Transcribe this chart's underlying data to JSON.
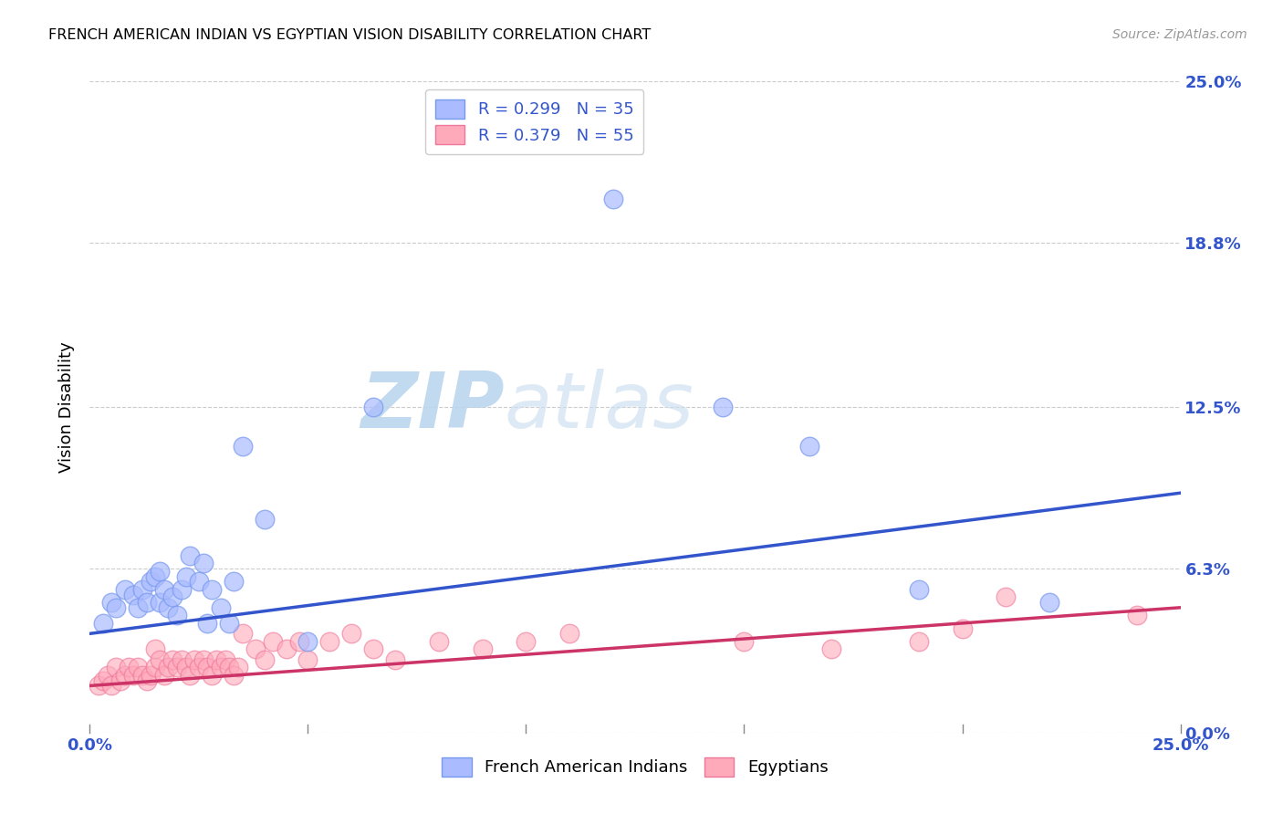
{
  "title": "FRENCH AMERICAN INDIAN VS EGYPTIAN VISION DISABILITY CORRELATION CHART",
  "source": "Source: ZipAtlas.com",
  "ylabel": "Vision Disability",
  "xlim": [
    0.0,
    0.25
  ],
  "ylim": [
    0.0,
    0.25
  ],
  "ytick_labels": [
    "0.0%",
    "6.3%",
    "12.5%",
    "18.8%",
    "25.0%"
  ],
  "ytick_values": [
    0.0,
    0.063,
    0.125,
    0.188,
    0.25
  ],
  "xtick_positions": [
    0.0,
    0.05,
    0.1,
    0.15,
    0.2,
    0.25
  ],
  "grid_color": "#cccccc",
  "background_color": "#ffffff",
  "blue_marker_color": "#aabbff",
  "blue_marker_edge": "#7799ee",
  "pink_marker_color": "#ffaabb",
  "pink_marker_edge": "#ee7799",
  "blue_line_color": "#3355cc",
  "pink_line_color": "#cc3366",
  "axis_label_color": "#3355cc",
  "legend_black": "#222222",
  "legend_blue": "#3355cc",
  "watermark_color": "#d6e8f5",
  "blue_scatter_x": [
    0.003,
    0.005,
    0.006,
    0.008,
    0.01,
    0.011,
    0.012,
    0.013,
    0.014,
    0.015,
    0.016,
    0.016,
    0.017,
    0.018,
    0.019,
    0.02,
    0.021,
    0.022,
    0.023,
    0.025,
    0.026,
    0.027,
    0.028,
    0.03,
    0.032,
    0.033,
    0.035,
    0.04,
    0.05,
    0.065,
    0.12,
    0.145,
    0.165,
    0.19,
    0.22
  ],
  "blue_scatter_y": [
    0.042,
    0.05,
    0.048,
    0.055,
    0.053,
    0.048,
    0.055,
    0.05,
    0.058,
    0.06,
    0.05,
    0.062,
    0.055,
    0.048,
    0.052,
    0.045,
    0.055,
    0.06,
    0.068,
    0.058,
    0.065,
    0.042,
    0.055,
    0.048,
    0.042,
    0.058,
    0.11,
    0.082,
    0.035,
    0.125,
    0.205,
    0.125,
    0.11,
    0.055,
    0.05
  ],
  "pink_scatter_x": [
    0.002,
    0.003,
    0.004,
    0.005,
    0.006,
    0.007,
    0.008,
    0.009,
    0.01,
    0.011,
    0.012,
    0.013,
    0.014,
    0.015,
    0.015,
    0.016,
    0.017,
    0.018,
    0.019,
    0.02,
    0.021,
    0.022,
    0.023,
    0.024,
    0.025,
    0.026,
    0.027,
    0.028,
    0.029,
    0.03,
    0.031,
    0.032,
    0.033,
    0.034,
    0.035,
    0.038,
    0.04,
    0.042,
    0.045,
    0.048,
    0.05,
    0.055,
    0.06,
    0.065,
    0.07,
    0.08,
    0.09,
    0.1,
    0.11,
    0.15,
    0.17,
    0.19,
    0.2,
    0.21,
    0.24
  ],
  "pink_scatter_y": [
    0.018,
    0.02,
    0.022,
    0.018,
    0.025,
    0.02,
    0.022,
    0.025,
    0.022,
    0.025,
    0.022,
    0.02,
    0.022,
    0.025,
    0.032,
    0.028,
    0.022,
    0.025,
    0.028,
    0.025,
    0.028,
    0.025,
    0.022,
    0.028,
    0.025,
    0.028,
    0.025,
    0.022,
    0.028,
    0.025,
    0.028,
    0.025,
    0.022,
    0.025,
    0.038,
    0.032,
    0.028,
    0.035,
    0.032,
    0.035,
    0.028,
    0.035,
    0.038,
    0.032,
    0.028,
    0.035,
    0.032,
    0.035,
    0.038,
    0.035,
    0.032,
    0.035,
    0.04,
    0.052,
    0.045
  ],
  "blue_line_x0": 0.0,
  "blue_line_y0": 0.038,
  "blue_line_x1": 0.25,
  "blue_line_y1": 0.092,
  "pink_line_x0": 0.0,
  "pink_line_y0": 0.018,
  "pink_line_x1": 0.25,
  "pink_line_y1": 0.048
}
